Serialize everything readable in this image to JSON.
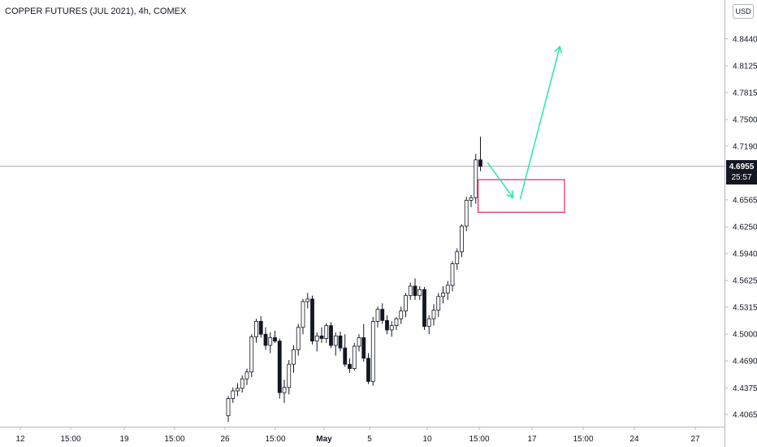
{
  "chart_data": {
    "type": "candlestick",
    "title": "COPPER FUTURES (JUL 2021), 4h, COMEX",
    "currency": "USD",
    "last_price": "4.6955",
    "countdown": "25:57",
    "y_ticks": [
      "4.8440",
      "4.8125",
      "4.7815",
      "4.7500",
      "4.7190",
      "4.6565",
      "4.6250",
      "4.5940",
      "4.5625",
      "4.5315",
      "4.5000",
      "4.4690",
      "4.4375",
      "4.4065"
    ],
    "y_tick_values": [
      4.844,
      4.8125,
      4.7815,
      4.75,
      4.719,
      4.6565,
      4.625,
      4.594,
      4.5625,
      4.5315,
      4.5,
      4.469,
      4.4375,
      4.4065
    ],
    "ylim": [
      4.398,
      4.875
    ],
    "x_ticks": [
      {
        "label": "12",
        "bold": false
      },
      {
        "label": "15:00",
        "bold": false
      },
      {
        "label": "19",
        "bold": false
      },
      {
        "label": "15:00",
        "bold": false
      },
      {
        "label": "26",
        "bold": false
      },
      {
        "label": "15:00",
        "bold": false
      },
      {
        "label": "May",
        "bold": true
      },
      {
        "label": "5",
        "bold": false
      },
      {
        "label": "10",
        "bold": false
      },
      {
        "label": "15:00",
        "bold": false
      },
      {
        "label": "17",
        "bold": false
      },
      {
        "label": "15:00",
        "bold": false
      },
      {
        "label": "24",
        "bold": false
      },
      {
        "label": "27",
        "bold": false
      }
    ],
    "candles": [
      [
        4.405,
        4.428,
        4.398,
        4.425
      ],
      [
        4.425,
        4.438,
        4.42,
        4.434
      ],
      [
        4.434,
        4.443,
        4.428,
        4.437
      ],
      [
        4.437,
        4.452,
        4.432,
        4.448
      ],
      [
        4.448,
        4.46,
        4.441,
        4.456
      ],
      [
        4.456,
        4.5,
        4.45,
        4.497
      ],
      [
        4.497,
        4.518,
        4.49,
        4.515
      ],
      [
        4.515,
        4.521,
        4.496,
        4.5
      ],
      [
        4.5,
        4.508,
        4.482,
        4.487
      ],
      [
        4.487,
        4.502,
        4.478,
        4.496
      ],
      [
        4.496,
        4.504,
        4.49,
        4.492
      ],
      [
        4.492,
        4.495,
        4.425,
        4.432
      ],
      [
        4.432,
        4.447,
        4.42,
        4.438
      ],
      [
        4.438,
        4.47,
        4.43,
        4.465
      ],
      [
        4.465,
        4.487,
        4.455,
        4.482
      ],
      [
        4.482,
        4.512,
        4.475,
        4.508
      ],
      [
        4.508,
        4.541,
        4.5,
        4.538
      ],
      [
        4.538,
        4.548,
        4.53,
        4.541
      ],
      [
        4.541,
        4.545,
        4.488,
        4.492
      ],
      [
        4.492,
        4.502,
        4.48,
        4.498
      ],
      [
        4.498,
        4.508,
        4.49,
        4.495
      ],
      [
        4.495,
        4.513,
        4.49,
        4.51
      ],
      [
        4.51,
        4.514,
        4.484,
        4.487
      ],
      [
        4.487,
        4.502,
        4.475,
        4.498
      ],
      [
        4.498,
        4.503,
        4.48,
        4.484
      ],
      [
        4.484,
        4.5,
        4.462,
        4.465
      ],
      [
        4.465,
        4.472,
        4.455,
        4.46
      ],
      [
        4.46,
        4.49,
        4.458,
        4.486
      ],
      [
        4.486,
        4.5,
        4.48,
        4.496
      ],
      [
        4.496,
        4.512,
        4.468,
        4.472
      ],
      [
        4.472,
        4.478,
        4.442,
        4.445
      ],
      [
        4.445,
        4.52,
        4.44,
        4.515
      ],
      [
        4.515,
        4.532,
        4.508,
        4.529
      ],
      [
        4.529,
        4.536,
        4.512,
        4.516
      ],
      [
        4.516,
        4.522,
        4.5,
        4.505
      ],
      [
        4.505,
        4.515,
        4.497,
        4.51
      ],
      [
        4.51,
        4.52,
        4.505,
        4.518
      ],
      [
        4.518,
        4.532,
        4.512,
        4.527
      ],
      [
        4.527,
        4.548,
        4.52,
        4.545
      ],
      [
        4.545,
        4.56,
        4.54,
        4.556
      ],
      [
        4.556,
        4.565,
        4.54,
        4.545
      ],
      [
        4.545,
        4.556,
        4.54,
        4.552
      ],
      [
        4.552,
        4.555,
        4.505,
        4.509
      ],
      [
        4.509,
        4.522,
        4.5,
        4.518
      ],
      [
        4.518,
        4.535,
        4.51,
        4.528
      ],
      [
        4.528,
        4.548,
        4.52,
        4.544
      ],
      [
        4.544,
        4.556,
        4.536,
        4.548
      ],
      [
        4.548,
        4.562,
        4.54,
        4.557
      ],
      [
        4.557,
        4.585,
        4.55,
        4.582
      ],
      [
        4.582,
        4.6,
        4.575,
        4.596
      ],
      [
        4.596,
        4.628,
        4.59,
        4.626
      ],
      [
        4.626,
        4.66,
        4.62,
        4.656
      ],
      [
        4.656,
        4.662,
        4.648,
        4.659
      ],
      [
        4.659,
        4.71,
        4.652,
        4.703
      ],
      [
        4.703,
        4.73,
        4.69,
        4.6955
      ]
    ],
    "rectangle": {
      "x0_index": 53.5,
      "x1_index": 72.0,
      "y_top": 4.68,
      "y_bottom": 4.642
    },
    "arrows": [
      {
        "from": [
          55.5,
          4.7
        ],
        "to": [
          61.0,
          4.659
        ]
      },
      {
        "from": [
          62.5,
          4.657
        ],
        "to": [
          71.0,
          4.835
        ]
      }
    ],
    "colors": {
      "candle": "#131722",
      "arrow": "#26e8a6",
      "box": "#e91e63",
      "grid": "#b2b5be",
      "text": "#131722"
    }
  }
}
